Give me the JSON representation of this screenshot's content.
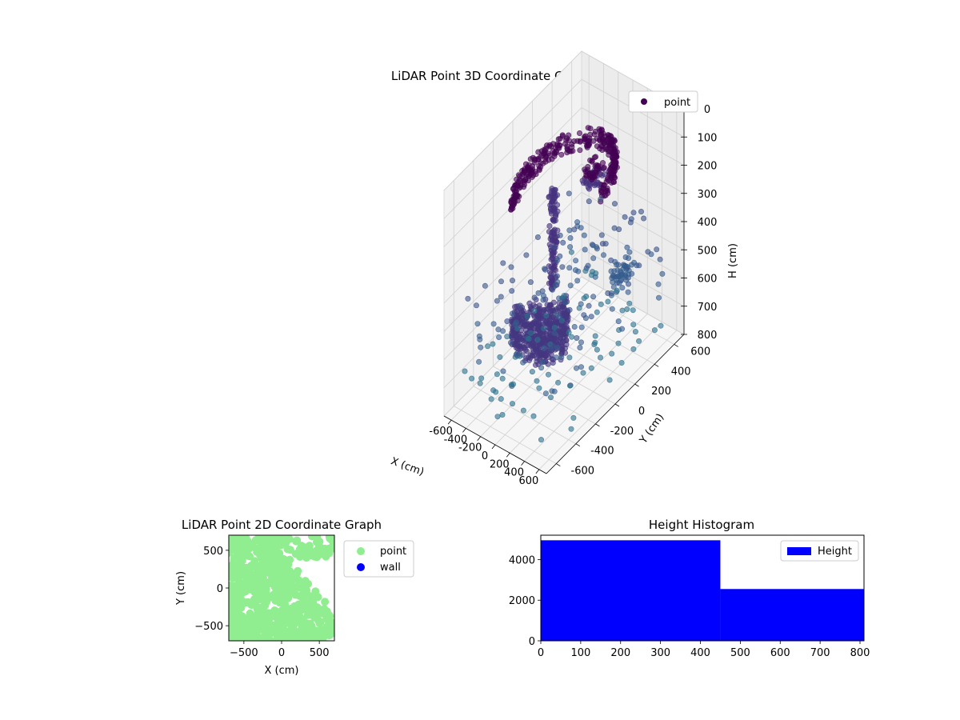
{
  "chart_data": [
    {
      "type": "scatter",
      "projection": "3d",
      "title": "LiDAR Point 3D Coordinate Graph",
      "xlabel": "X (cm)",
      "ylabel": "Y (cm)",
      "zlabel": "H (cm)",
      "xlim": [
        -700,
        700
      ],
      "ylim": [
        -700,
        700
      ],
      "zlim": [
        0,
        800
      ],
      "z_inverted": true,
      "xticks": [
        -600,
        -400,
        -200,
        0,
        200,
        400,
        600
      ],
      "yticks": [
        -600,
        -400,
        -200,
        0,
        200,
        400,
        600
      ],
      "zticks": [
        0,
        100,
        200,
        300,
        400,
        500,
        600,
        700,
        800
      ],
      "grid": true,
      "legend": {
        "position": "top-right",
        "entries": [
          "point"
        ]
      },
      "colormap": "viridis",
      "marker_color": "#440154",
      "series": [
        {
          "name": "point",
          "clusters": [
            {
              "shape": "arc",
              "radius": 420,
              "h": 120,
              "from_deg": 10,
              "to_deg": 230,
              "count": 320,
              "hspread": 35
            },
            {
              "shape": "column",
              "x": -120,
              "y": -20,
              "h_from": 150,
              "h_to": 500,
              "count": 120
            },
            {
              "shape": "fan",
              "center": [
                20,
                40
              ],
              "radius": 480,
              "from_deg": 210,
              "to_deg": 320,
              "h": 560,
              "count": 520
            },
            {
              "shape": "blob",
              "x": 80,
              "y": 240,
              "h": 160,
              "count": 70
            },
            {
              "shape": "scatter",
              "range": 650,
              "h_range": [
                380,
                800
              ],
              "count": 230
            },
            {
              "shape": "blob",
              "x": 320,
              "y": 360,
              "h": 520,
              "count": 40
            }
          ]
        }
      ]
    },
    {
      "type": "scatter",
      "title": "LiDAR Point 2D Coordinate Graph",
      "xlabel": "X (cm)",
      "ylabel": "Y (cm)",
      "xlim": [
        -700,
        700
      ],
      "ylim": [
        -700,
        700
      ],
      "xticks": [
        -500,
        0,
        500
      ],
      "yticks": [
        -500,
        0,
        500
      ],
      "grid": false,
      "legend": {
        "position": "outside-right",
        "entries": [
          "point",
          "wall"
        ]
      },
      "series": [
        {
          "name": "point",
          "color": "#90ee90",
          "region": "dense fill covering the lower-left two thirds of the plot"
        },
        {
          "name": "wall",
          "color": "#0000ff",
          "points": []
        }
      ]
    },
    {
      "type": "histogram",
      "title": "Height Histogram",
      "xlabel": "",
      "ylabel": "",
      "xlim": [
        0,
        810
      ],
      "ylim": [
        0,
        5200
      ],
      "xticks": [
        0,
        100,
        200,
        300,
        400,
        500,
        600,
        700,
        800
      ],
      "yticks": [
        0,
        2000,
        4000
      ],
      "grid": false,
      "legend": {
        "position": "top-right",
        "entries": [
          "Height"
        ]
      },
      "series": [
        {
          "name": "Height",
          "color": "#0000ff",
          "bins": [
            {
              "from": 0,
              "to": 450,
              "count": 4950
            },
            {
              "from": 450,
              "to": 810,
              "count": 2550
            }
          ]
        }
      ]
    }
  ]
}
